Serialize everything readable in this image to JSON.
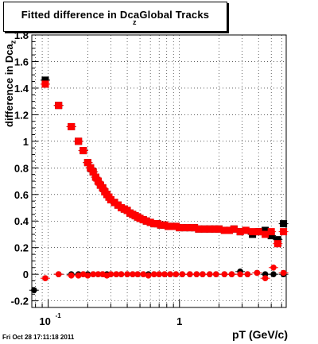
{
  "title": {
    "main": "Fitted difference in Dca",
    "sub": "z",
    "suffix": "Global Tracks"
  },
  "timestamp": "Fri Oct 28 17:11:18 2011",
  "chart_data": {
    "type": "scatter",
    "title": "Fitted difference in Dca_z Global Tracks",
    "xlabel": "pT (GeV/c)",
    "ylabel": "difference in Dca_z",
    "xscale": "log",
    "xlim": [
      0.075,
      6.5
    ],
    "ylim": [
      -0.25,
      1.8
    ],
    "grid": true,
    "x_tick_labels": [
      {
        "value": 0.1,
        "label": "10",
        "sup": "-1"
      },
      {
        "value": 1,
        "label": "1",
        "sup": ""
      }
    ],
    "y_ticks": [
      -0.2,
      0,
      0.2,
      0.4,
      0.6,
      0.8,
      1,
      1.2,
      1.4,
      1.6,
      1.8
    ],
    "y_tick_labels": [
      "-0.2",
      "0",
      "0.2",
      "0.4",
      "0.6",
      "0.8",
      "1",
      "1.2",
      "1.4",
      "1.6",
      "1.8"
    ],
    "series": [
      {
        "color": "#000000",
        "marker": "square",
        "x": [
          0.095,
          0.12,
          0.15,
          0.17,
          0.185,
          0.2,
          0.21,
          0.22,
          0.23,
          0.24,
          0.25,
          0.26,
          0.27,
          0.28,
          0.29,
          0.3,
          0.32,
          0.34,
          0.36,
          0.38,
          0.4,
          0.42,
          0.44,
          0.46,
          0.48,
          0.5,
          0.53,
          0.56,
          0.6,
          0.64,
          0.68,
          0.72,
          0.77,
          0.82,
          0.88,
          0.94,
          1.0,
          1.1,
          1.2,
          1.3,
          1.4,
          1.55,
          1.7,
          1.85,
          2.0,
          2.2,
          2.4,
          2.6,
          2.9,
          3.2,
          3.6,
          4.0,
          4.5,
          5.0,
          5.6,
          6.2
        ],
        "values": [
          1.46,
          1.27,
          1.11,
          1.0,
          0.93,
          0.84,
          0.8,
          0.77,
          0.73,
          0.7,
          0.67,
          0.65,
          0.62,
          0.6,
          0.58,
          0.56,
          0.54,
          0.52,
          0.5,
          0.49,
          0.48,
          0.46,
          0.45,
          0.44,
          0.43,
          0.42,
          0.41,
          0.4,
          0.39,
          0.38,
          0.38,
          0.37,
          0.37,
          0.36,
          0.36,
          0.36,
          0.35,
          0.35,
          0.35,
          0.35,
          0.34,
          0.34,
          0.34,
          0.34,
          0.34,
          0.33,
          0.33,
          0.34,
          0.32,
          0.33,
          0.3,
          0.32,
          0.33,
          0.29,
          0.26,
          0.38
        ]
      },
      {
        "color": "#ff0000",
        "marker": "square",
        "x": [
          0.095,
          0.12,
          0.15,
          0.17,
          0.185,
          0.2,
          0.21,
          0.22,
          0.23,
          0.24,
          0.25,
          0.26,
          0.27,
          0.28,
          0.29,
          0.3,
          0.32,
          0.34,
          0.36,
          0.38,
          0.4,
          0.42,
          0.44,
          0.46,
          0.48,
          0.5,
          0.53,
          0.56,
          0.6,
          0.64,
          0.68,
          0.72,
          0.77,
          0.82,
          0.88,
          0.94,
          1.0,
          1.1,
          1.2,
          1.3,
          1.4,
          1.55,
          1.7,
          1.85,
          2.0,
          2.2,
          2.4,
          2.6,
          2.9,
          3.2,
          3.6,
          4.0,
          4.5,
          5.0,
          5.6,
          6.2
        ],
        "values": [
          1.43,
          1.27,
          1.11,
          1.0,
          0.93,
          0.84,
          0.8,
          0.77,
          0.73,
          0.7,
          0.67,
          0.65,
          0.62,
          0.6,
          0.58,
          0.56,
          0.54,
          0.52,
          0.5,
          0.49,
          0.48,
          0.46,
          0.45,
          0.44,
          0.43,
          0.42,
          0.41,
          0.4,
          0.39,
          0.38,
          0.38,
          0.37,
          0.37,
          0.36,
          0.36,
          0.36,
          0.35,
          0.35,
          0.35,
          0.35,
          0.34,
          0.34,
          0.34,
          0.34,
          0.34,
          0.33,
          0.33,
          0.34,
          0.32,
          0.33,
          0.32,
          0.32,
          0.3,
          0.32,
          0.23,
          0.32
        ]
      },
      {
        "color": "#000000",
        "marker": "circle",
        "x": [
          0.078,
          0.12,
          0.15,
          0.17,
          0.185,
          0.2,
          0.22,
          0.24,
          0.26,
          0.28,
          0.3,
          0.33,
          0.36,
          0.4,
          0.44,
          0.48,
          0.53,
          0.58,
          0.64,
          0.7,
          0.77,
          0.85,
          0.94,
          1.05,
          1.2,
          1.35,
          1.5,
          1.7,
          1.9,
          2.2,
          2.5,
          2.9,
          3.3,
          3.9,
          4.5,
          5.2,
          6.2
        ],
        "values": [
          -0.12,
          0.0,
          0.0,
          0.0,
          0.0,
          0.0,
          0.0,
          0.0,
          0.0,
          0.0,
          0.0,
          0.0,
          0.0,
          0.0,
          0.0,
          0.0,
          0.0,
          0.0,
          0.0,
          0.0,
          0.0,
          0.0,
          0.0,
          0.0,
          0.0,
          0.0,
          0.0,
          0.0,
          0.0,
          0.0,
          0.0,
          0.02,
          0.0,
          0.01,
          0.0,
          0.0,
          0.0
        ]
      },
      {
        "color": "#ff0000",
        "marker": "circle",
        "x": [
          0.095,
          0.12,
          0.15,
          0.17,
          0.185,
          0.2,
          0.22,
          0.24,
          0.26,
          0.28,
          0.3,
          0.33,
          0.36,
          0.4,
          0.44,
          0.48,
          0.53,
          0.58,
          0.64,
          0.7,
          0.77,
          0.85,
          0.94,
          1.05,
          1.2,
          1.35,
          1.5,
          1.7,
          1.9,
          2.2,
          2.5,
          2.9,
          3.3,
          3.9,
          4.5,
          5.2,
          6.2
        ],
        "values": [
          -0.03,
          0.0,
          -0.01,
          -0.01,
          0.0,
          -0.01,
          0.0,
          0.0,
          0.0,
          -0.01,
          0.0,
          0.0,
          0.0,
          0.0,
          0.0,
          0.0,
          0.0,
          -0.01,
          0.0,
          0.0,
          0.0,
          0.0,
          0.0,
          0.0,
          0.0,
          0.0,
          0.0,
          0.0,
          0.0,
          0.0,
          0.0,
          0.0,
          0.0,
          0.01,
          -0.03,
          0.05,
          0.01
        ]
      }
    ]
  }
}
